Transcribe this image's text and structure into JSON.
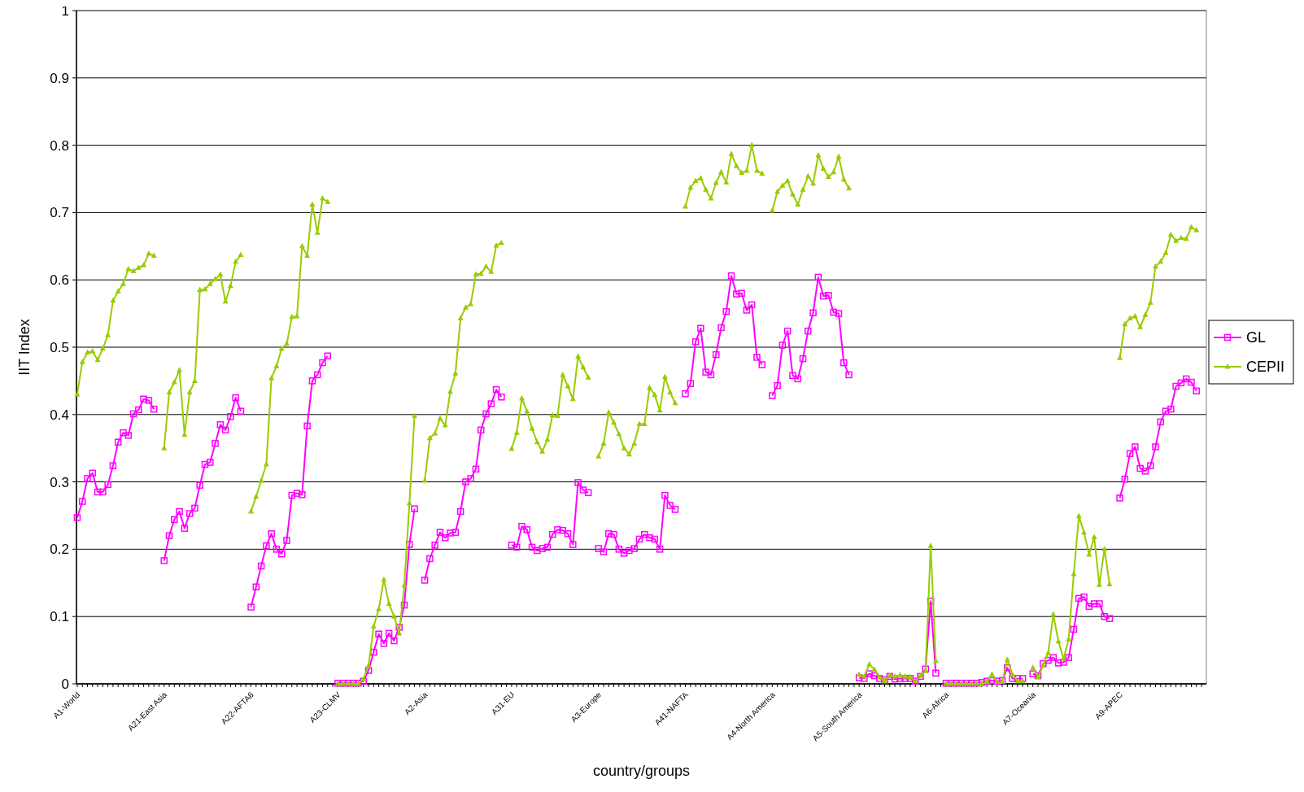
{
  "chart_data": {
    "type": "line",
    "xlabel": "country/groups",
    "ylabel": "IIT Index",
    "ylim": [
      0,
      1
    ],
    "yticks": [
      0,
      0.1,
      0.2,
      0.3,
      0.4,
      0.5,
      0.6,
      0.7,
      0.8,
      0.9,
      1
    ],
    "grid": "y",
    "legend": "right",
    "categories": [
      "A1-World",
      null,
      null,
      null,
      null,
      null,
      null,
      null,
      null,
      null,
      null,
      null,
      null,
      null,
      null,
      null,
      null,
      "A21-East Asia",
      null,
      null,
      null,
      null,
      null,
      null,
      null,
      null,
      null,
      null,
      null,
      null,
      null,
      null,
      null,
      null,
      "A22-AFTA6",
      null,
      null,
      null,
      null,
      null,
      null,
      null,
      null,
      null,
      null,
      null,
      null,
      null,
      null,
      null,
      null,
      "A23-CLMV",
      null,
      null,
      null,
      null,
      null,
      null,
      null,
      null,
      null,
      null,
      null,
      null,
      null,
      null,
      null,
      null,
      "A2-Asia",
      null,
      null,
      null,
      null,
      null,
      null,
      null,
      null,
      null,
      null,
      null,
      null,
      null,
      null,
      null,
      null,
      "A31-EU",
      null,
      null,
      null,
      null,
      null,
      null,
      null,
      null,
      null,
      null,
      null,
      null,
      null,
      null,
      null,
      null,
      "A3-Europe",
      null,
      null,
      null,
      null,
      null,
      null,
      null,
      null,
      null,
      null,
      null,
      null,
      null,
      null,
      null,
      null,
      "A41-NAFTA",
      null,
      null,
      null,
      null,
      null,
      null,
      null,
      null,
      null,
      null,
      null,
      null,
      null,
      null,
      null,
      null,
      "A4-North America",
      null,
      null,
      null,
      null,
      null,
      null,
      null,
      null,
      null,
      null,
      null,
      null,
      null,
      null,
      null,
      null,
      "A5-South America",
      null,
      null,
      null,
      null,
      null,
      null,
      null,
      null,
      null,
      null,
      null,
      null,
      null,
      null,
      null,
      null,
      "A6-Africa",
      null,
      null,
      null,
      null,
      null,
      null,
      null,
      null,
      null,
      null,
      null,
      null,
      null,
      null,
      null,
      null,
      "A7-Oceania",
      null,
      null,
      null,
      null,
      null,
      null,
      null,
      null,
      null,
      null,
      null,
      null,
      null,
      null,
      null,
      null,
      "A9-APEC",
      null,
      null,
      null,
      null,
      null,
      null,
      null,
      null,
      null,
      null,
      null,
      null,
      null,
      null,
      null,
      null
    ],
    "series": [
      {
        "name": "GL",
        "color": "#ff00ff",
        "marker": "square",
        "values": [
          0.247,
          0.271,
          0.305,
          0.313,
          0.285,
          0.285,
          0.296,
          0.324,
          0.359,
          0.373,
          0.369,
          0.401,
          0.407,
          0.423,
          0.421,
          0.408,
          null,
          0.183,
          0.22,
          0.244,
          0.256,
          0.231,
          0.253,
          0.261,
          0.295,
          0.326,
          0.329,
          0.357,
          0.385,
          0.377,
          0.397,
          0.425,
          0.405,
          null,
          0.114,
          0.144,
          0.175,
          0.205,
          0.223,
          0.2,
          0.193,
          0.213,
          0.28,
          0.283,
          0.281,
          0.383,
          0.45,
          0.459,
          0.477,
          0.487,
          null,
          0.001,
          0.001,
          0.001,
          0.001,
          0.001,
          0.004,
          0.02,
          0.047,
          0.074,
          0.06,
          0.075,
          0.064,
          0.084,
          0.117,
          0.207,
          0.26,
          null,
          0.154,
          0.186,
          0.206,
          0.225,
          0.217,
          0.224,
          0.225,
          0.256,
          0.3,
          0.305,
          0.319,
          0.377,
          0.401,
          0.416,
          0.437,
          0.426,
          null,
          0.206,
          0.203,
          0.234,
          0.229,
          0.203,
          0.198,
          0.201,
          0.203,
          0.222,
          0.229,
          0.228,
          0.223,
          0.207,
          0.299,
          0.288,
          0.284,
          null,
          0.201,
          0.196,
          0.223,
          0.222,
          0.2,
          0.194,
          0.198,
          0.201,
          0.215,
          0.222,
          0.217,
          0.215,
          0.2,
          0.28,
          0.265,
          0.259,
          null,
          0.431,
          0.446,
          0.508,
          0.528,
          0.463,
          0.459,
          0.489,
          0.529,
          0.553,
          0.606,
          0.579,
          0.58,
          0.555,
          0.563,
          0.485,
          0.474,
          null,
          0.428,
          0.443,
          0.503,
          0.524,
          0.458,
          0.453,
          0.483,
          0.524,
          0.551,
          0.604,
          0.576,
          0.577,
          0.552,
          0.55,
          0.477,
          0.459,
          null,
          0.009,
          0.008,
          0.015,
          0.012,
          0.008,
          0.006,
          0.011,
          0.007,
          0.008,
          0.008,
          0.008,
          0.004,
          0.011,
          0.022,
          0.123,
          0.016,
          null,
          0.001,
          0.001,
          0.001,
          0.001,
          0.001,
          0.001,
          0.001,
          0.002,
          0.004,
          0.005,
          0.004,
          0.005,
          0.024,
          0.008,
          0.008,
          0.008,
          null,
          0.015,
          0.012,
          0.03,
          0.035,
          0.039,
          0.031,
          0.032,
          0.039,
          0.081,
          0.127,
          0.129,
          0.115,
          0.119,
          0.119,
          0.1,
          0.097,
          null,
          0.276,
          0.304,
          0.342,
          0.352,
          0.32,
          0.316,
          0.324,
          0.352,
          0.389,
          0.405,
          0.408,
          0.442,
          0.447,
          0.453,
          0.448,
          0.435,
          null
        ]
      },
      {
        "name": "CEPII",
        "color": "#99cc00",
        "marker": "triangle",
        "values": [
          0.43,
          0.478,
          0.492,
          0.494,
          0.481,
          0.498,
          0.518,
          0.569,
          0.583,
          0.594,
          0.616,
          0.613,
          0.618,
          0.622,
          0.639,
          0.636,
          null,
          0.35,
          0.433,
          0.448,
          0.466,
          0.37,
          0.433,
          0.45,
          0.585,
          0.586,
          0.594,
          0.601,
          0.608,
          0.568,
          0.591,
          0.627,
          0.637,
          null,
          0.256,
          0.278,
          0.302,
          0.326,
          0.454,
          0.472,
          0.498,
          0.505,
          0.545,
          0.546,
          0.65,
          0.636,
          0.712,
          0.67,
          0.721,
          0.716,
          null,
          0,
          0,
          0,
          0,
          0,
          0.007,
          0.027,
          0.085,
          0.111,
          0.155,
          0.119,
          0.1,
          0.075,
          0.146,
          0.268,
          0.398,
          null,
          0.302,
          0.365,
          0.372,
          0.394,
          0.384,
          0.434,
          0.461,
          0.543,
          0.559,
          0.564,
          0.608,
          0.609,
          0.62,
          0.612,
          0.651,
          0.655,
          null,
          0.349,
          0.373,
          0.424,
          0.405,
          0.379,
          0.359,
          0.345,
          0.363,
          0.399,
          0.398,
          0.459,
          0.442,
          0.423,
          0.486,
          0.47,
          0.455,
          null,
          0.338,
          0.357,
          0.403,
          0.388,
          0.371,
          0.35,
          0.341,
          0.357,
          0.386,
          0.386,
          0.44,
          0.429,
          0.406,
          0.456,
          0.433,
          0.417,
          null,
          0.709,
          0.737,
          0.747,
          0.751,
          0.734,
          0.721,
          0.744,
          0.76,
          0.745,
          0.787,
          0.769,
          0.759,
          0.762,
          0.8,
          0.762,
          0.758,
          null,
          0.703,
          0.731,
          0.74,
          0.747,
          0.727,
          0.712,
          0.734,
          0.754,
          0.743,
          0.785,
          0.765,
          0.753,
          0.76,
          0.783,
          0.749,
          0.736,
          null,
          0.014,
          0.011,
          0.029,
          0.021,
          0.01,
          0.004,
          0.013,
          0.011,
          0.013,
          0.011,
          0.01,
          0.004,
          0.012,
          0.019,
          0.205,
          0.034,
          null,
          0,
          0,
          0,
          0,
          0,
          0,
          0,
          0,
          0.003,
          0.014,
          0.003,
          0.003,
          0.036,
          0.014,
          0.004,
          0.004,
          null,
          0.024,
          0.01,
          0.027,
          0.046,
          0.103,
          0.063,
          0.037,
          0.066,
          0.163,
          0.249,
          0.225,
          0.192,
          0.218,
          0.147,
          0.2,
          0.148,
          null,
          0.484,
          0.534,
          0.543,
          0.546,
          0.53,
          0.548,
          0.566,
          0.62,
          0.627,
          0.64,
          0.667,
          0.658,
          0.662,
          0.661,
          0.678,
          0.674,
          null
        ]
      }
    ]
  }
}
